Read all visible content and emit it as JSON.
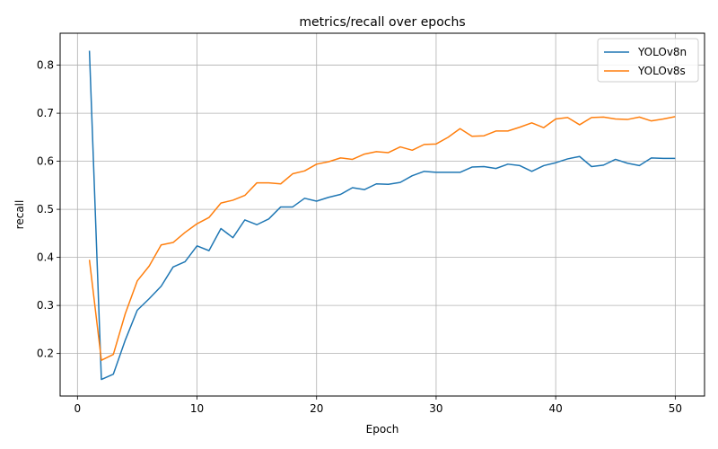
{
  "chart_data": {
    "type": "line",
    "title": "metrics/recall over epochs",
    "xlabel": "Epoch",
    "ylabel": "recall",
    "xlim": [
      -1.45,
      52.45
    ],
    "ylim": [
      0.1115,
      0.8665
    ],
    "x_ticks": [
      0,
      10,
      20,
      30,
      40,
      50
    ],
    "y_ticks": [
      0.2,
      0.3,
      0.4,
      0.5,
      0.6,
      0.7,
      0.8
    ],
    "x_tick_labels": [
      "0",
      "10",
      "20",
      "30",
      "40",
      "50"
    ],
    "y_tick_labels": [
      "0.2",
      "0.3",
      "0.4",
      "0.5",
      "0.6",
      "0.7",
      "0.8"
    ],
    "grid": true,
    "legend": "top-right",
    "x": [
      1,
      2,
      3,
      4,
      5,
      6,
      7,
      8,
      9,
      10,
      11,
      12,
      13,
      14,
      15,
      16,
      17,
      18,
      19,
      20,
      21,
      22,
      23,
      24,
      25,
      26,
      27,
      28,
      29,
      30,
      31,
      32,
      33,
      34,
      35,
      36,
      37,
      38,
      39,
      40,
      41,
      42,
      43,
      44,
      45,
      46,
      47,
      48,
      49,
      50
    ],
    "series": [
      {
        "name": "YOLOv8n",
        "color": "#1f77b4",
        "values": [
          0.83,
          0.146,
          0.157,
          0.228,
          0.29,
          0.314,
          0.34,
          0.38,
          0.391,
          0.424,
          0.414,
          0.46,
          0.441,
          0.478,
          0.468,
          0.48,
          0.505,
          0.505,
          0.523,
          0.517,
          0.525,
          0.531,
          0.545,
          0.541,
          0.553,
          0.552,
          0.556,
          0.57,
          0.579,
          0.577,
          0.577,
          0.577,
          0.588,
          0.589,
          0.585,
          0.594,
          0.591,
          0.579,
          0.591,
          0.597,
          0.605,
          0.61,
          0.589,
          0.592,
          0.604,
          0.596,
          0.591,
          0.607,
          0.606,
          0.606
        ]
      },
      {
        "name": "YOLOv8s",
        "color": "#ff7f0e",
        "values": [
          0.395,
          0.186,
          0.198,
          0.283,
          0.351,
          0.382,
          0.426,
          0.431,
          0.452,
          0.47,
          0.483,
          0.513,
          0.519,
          0.529,
          0.555,
          0.555,
          0.553,
          0.574,
          0.58,
          0.594,
          0.599,
          0.607,
          0.604,
          0.615,
          0.62,
          0.618,
          0.63,
          0.623,
          0.635,
          0.636,
          0.65,
          0.668,
          0.652,
          0.653,
          0.663,
          0.663,
          0.671,
          0.68,
          0.67,
          0.688,
          0.691,
          0.676,
          0.691,
          0.692,
          0.688,
          0.687,
          0.692,
          0.684,
          0.688,
          0.693
        ]
      }
    ]
  }
}
